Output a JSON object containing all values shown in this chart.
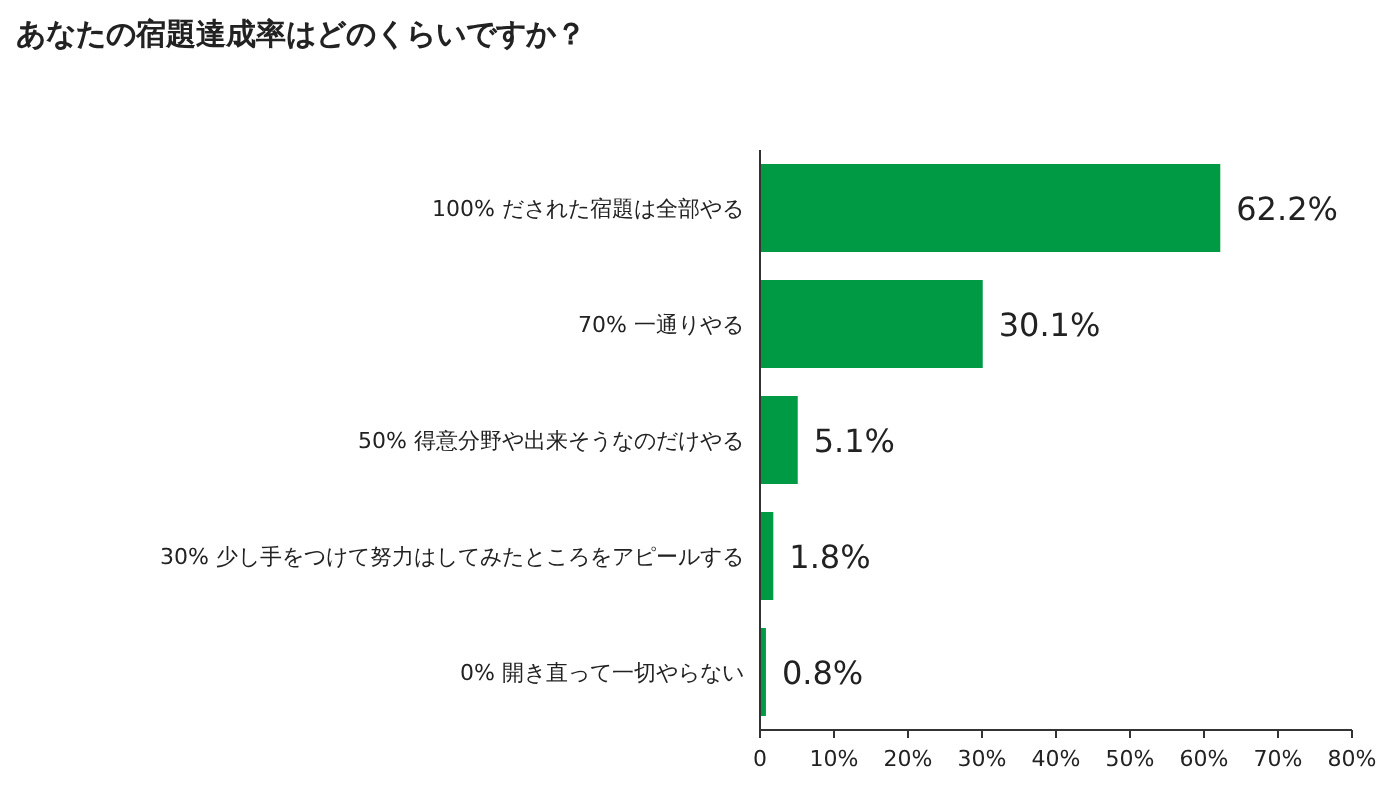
{
  "chart_data": {
    "type": "bar",
    "orientation": "horizontal",
    "title": "あなたの宿題達成率はどのくらいですか？",
    "categories": [
      "100% だされた宿題は全部やる",
      "70% 一通りやる",
      "50% 得意分野や出来そうなのだけやる",
      "30% 少し手をつけて努力はしてみたところをアピールする",
      "0% 開き直って一切やらない"
    ],
    "values": [
      62.2,
      30.1,
      5.1,
      1.8,
      0.8
    ],
    "value_labels": [
      "62.2%",
      "30.1%",
      "5.1%",
      "1.8%",
      "0.8%"
    ],
    "color": "#009a44",
    "xlim": [
      0,
      80
    ],
    "xticks": [
      0,
      {
        "value": 10,
        "label": "10%"
      },
      {
        "value": 20,
        "label": "20%"
      },
      {
        "value": 30,
        "label": "30%"
      },
      {
        "value": 40,
        "label": "40%"
      },
      {
        "value": 50,
        "label": "50%"
      },
      {
        "value": 60,
        "label": "60%"
      },
      {
        "value": 70,
        "label": "70%"
      },
      {
        "value": 80,
        "label": "80%"
      }
    ],
    "grid": false
  }
}
